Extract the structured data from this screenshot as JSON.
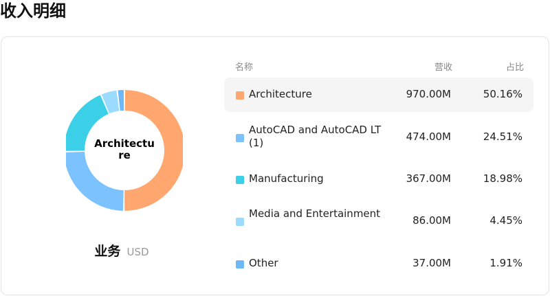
{
  "page": {
    "title": "收入明细"
  },
  "donut": {
    "center_label_line1": "Architectu",
    "center_label_line2": "re"
  },
  "caption": {
    "label": "业务",
    "unit": "USD"
  },
  "table": {
    "headers": {
      "name": "名称",
      "revenue": "营收",
      "share": "占比"
    },
    "rows": [
      {
        "name": "Architecture",
        "revenue": "970.00M",
        "share": "50.16%",
        "color": "#FFA76F",
        "selected": true
      },
      {
        "name": "AutoCAD and AutoCAD LT (1)",
        "revenue": "474.00M",
        "share": "24.51%",
        "color": "#7BC2FF",
        "selected": false
      },
      {
        "name": "Manufacturing",
        "revenue": "367.00M",
        "share": "18.98%",
        "color": "#3CD0E8",
        "selected": false
      },
      {
        "name": "Media and Entertainment",
        "revenue": "86.00M",
        "share": "4.45%",
        "color": "#9ADBFF",
        "selected": false
      },
      {
        "name": "Other",
        "revenue": "37.00M",
        "share": "1.91%",
        "color": "#6EB8F7",
        "selected": false
      }
    ]
  },
  "chart_data": {
    "type": "pie",
    "categories": [
      "Architecture",
      "AutoCAD and AutoCAD LT (1)",
      "Manufacturing",
      "Media and Entertainment",
      "Other"
    ],
    "values": [
      970.0,
      474.0,
      367.0,
      86.0,
      37.0
    ],
    "percentages": [
      50.16,
      24.51,
      18.98,
      4.45,
      1.91
    ],
    "colors": [
      "#FFA76F",
      "#7BC2FF",
      "#3CD0E8",
      "#9ADBFF",
      "#6EB8F7"
    ],
    "donut": true
  }
}
